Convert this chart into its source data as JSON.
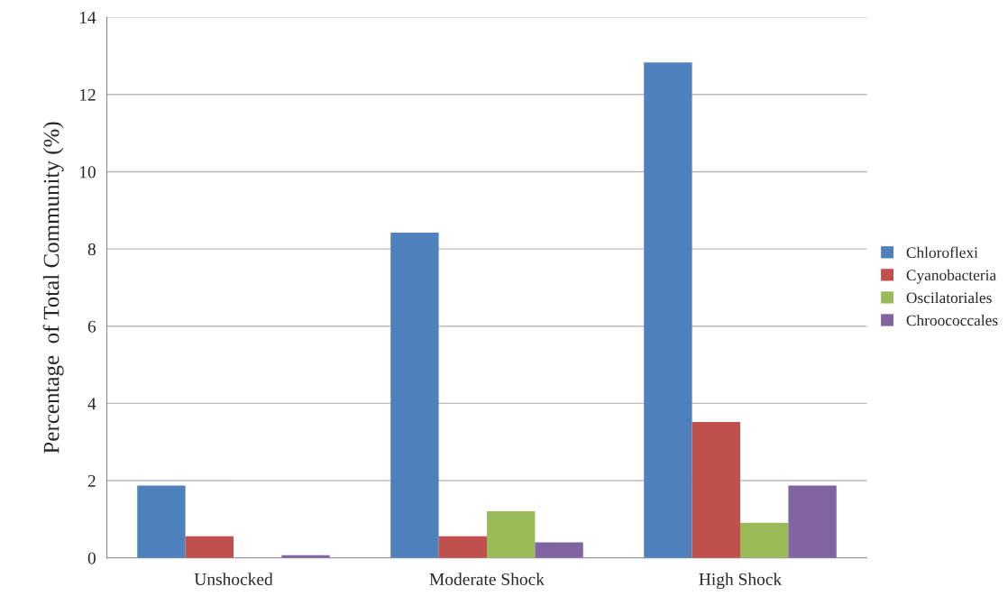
{
  "chart_data": {
    "type": "bar",
    "ylabel": "Percentage  of Total Community (%)",
    "categories": [
      "Unshocked",
      "Moderate Shock",
      "High Shock"
    ],
    "series": [
      {
        "name": "Chloroflexi",
        "color": "#4f81bd",
        "values": [
          1.87,
          8.42,
          12.83
        ]
      },
      {
        "name": "Cyanobacteria",
        "color": "#c0504d",
        "values": [
          0.56,
          0.56,
          3.52
        ]
      },
      {
        "name": "Oscilatoriales",
        "color": "#9bbb59",
        "values": [
          null,
          1.21,
          0.91
        ]
      },
      {
        "name": "Chroococcales",
        "color": "#8064a2",
        "values": [
          0.07,
          0.4,
          1.87
        ]
      }
    ],
    "ylim": [
      0,
      14
    ],
    "yticks": [
      0,
      2,
      4,
      6,
      8,
      10,
      12,
      14
    ],
    "grid": "y",
    "legend": "right"
  }
}
